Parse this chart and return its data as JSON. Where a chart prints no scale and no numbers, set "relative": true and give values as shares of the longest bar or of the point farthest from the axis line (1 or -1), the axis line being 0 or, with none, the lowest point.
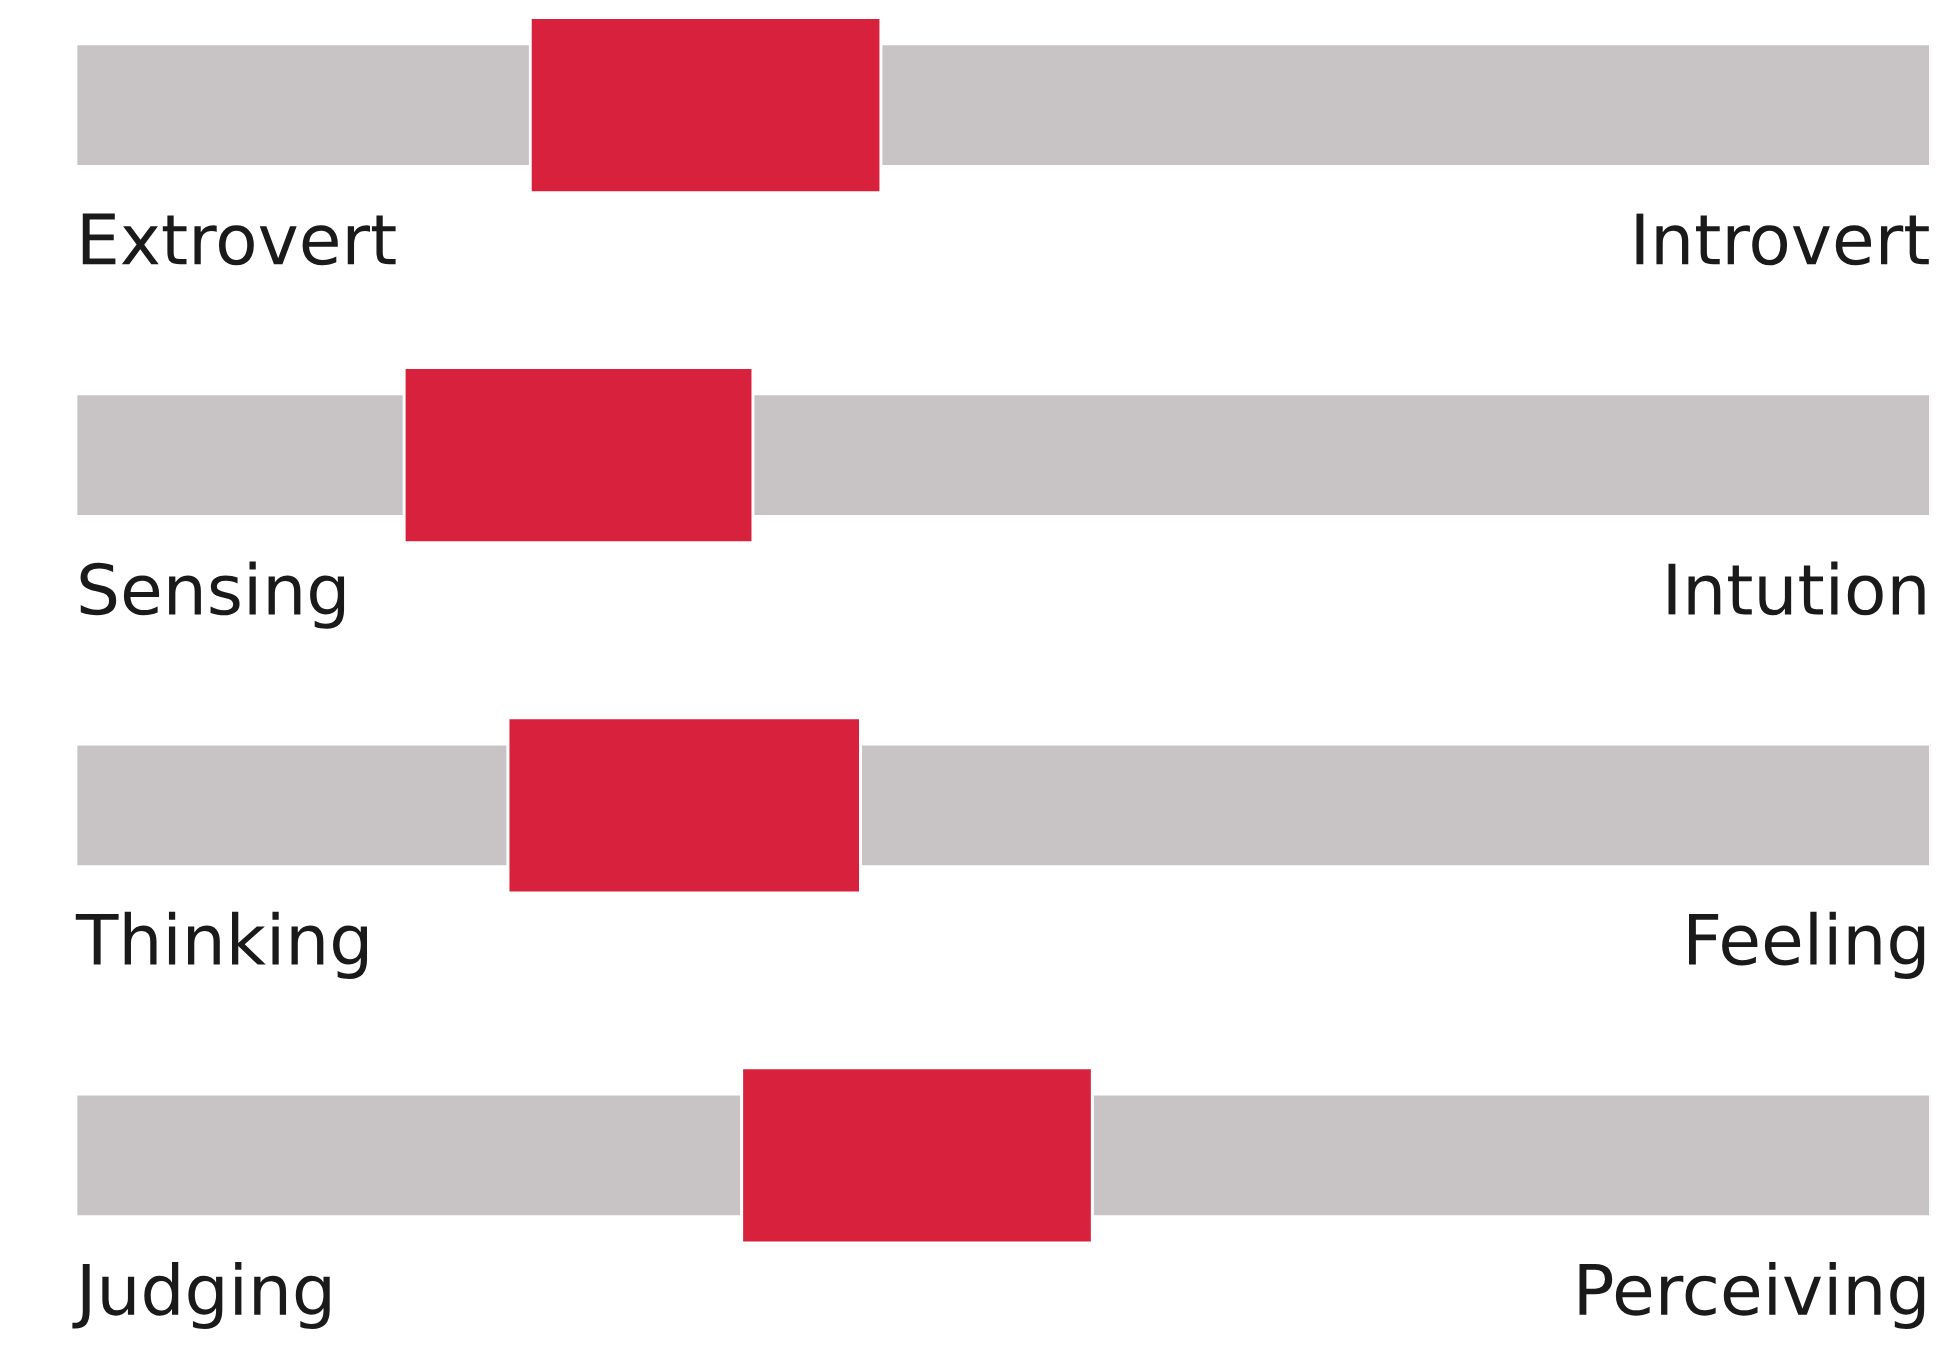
{
  "chart_data": {
    "type": "bar",
    "orientation": "horizontal",
    "stacked": true,
    "relative": true,
    "categories": [
      "Extrovert",
      "Sensing",
      "Thinking",
      "Judging"
    ],
    "series": [
      {
        "color": "#c8c4c5",
        "values": [
          0.245,
          0.177,
          0.233,
          0.359
        ]
      },
      {
        "color": "#d8213d",
        "values": [
          0.189,
          0.188,
          0.19,
          0.189
        ]
      },
      {
        "color": "#c8c4c5",
        "values": [
          0.566,
          0.635,
          0.577,
          0.452
        ]
      }
    ],
    "annotations": [
      "Introvert",
      "Intution",
      "Feeling",
      "Perceiving"
    ]
  }
}
